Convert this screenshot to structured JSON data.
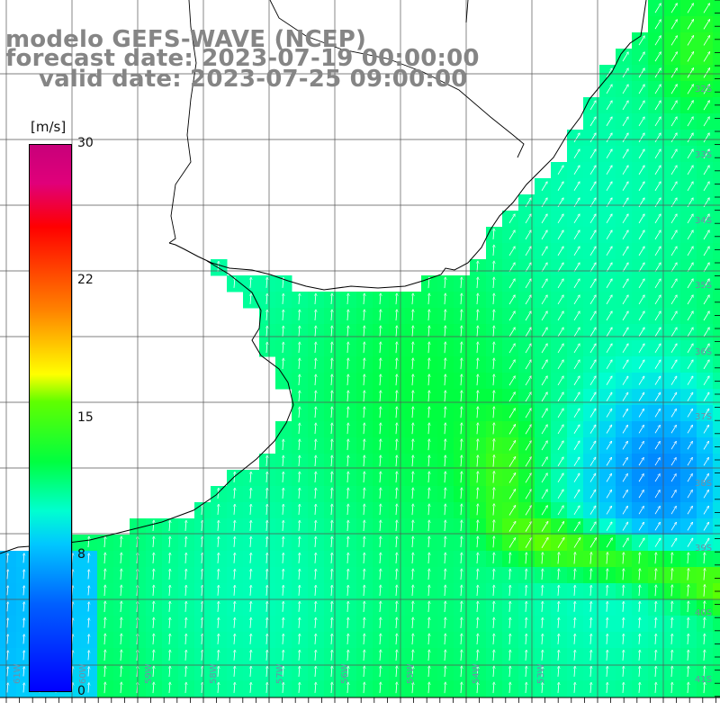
{
  "title": {
    "line1": "modelo GEFS-WAVE (NCEP)",
    "line2": "forecast date: 2023-07-19 00:00:00",
    "line3": "valid date: 2023-07-25 09:00:00"
  },
  "colorbar": {
    "unit": "[m/s]",
    "ticks": [
      "30",
      "22",
      "15",
      "8",
      "0"
    ],
    "min": 0,
    "max": 30,
    "colors": [
      "#0000ff",
      "#0060ff",
      "#00c8ff",
      "#00ffd0",
      "#00ff40",
      "#60ff00",
      "#ffff00",
      "#ff8000",
      "#ff0000",
      "#e0007a",
      "#c8007a"
    ]
  },
  "lat_labels": [
    "32S",
    "33S",
    "34S",
    "35S",
    "36S",
    "37S",
    "38S",
    "39S",
    "40S",
    "41S"
  ],
  "lon_labels": [
    "61W",
    "60W",
    "59W",
    "58W",
    "57W",
    "56W",
    "55W",
    "54W",
    "53W"
  ],
  "field": {
    "variable": "wind speed",
    "units": "m/s",
    "vector_direction": "mostly northward, veering northeast in the east"
  }
}
